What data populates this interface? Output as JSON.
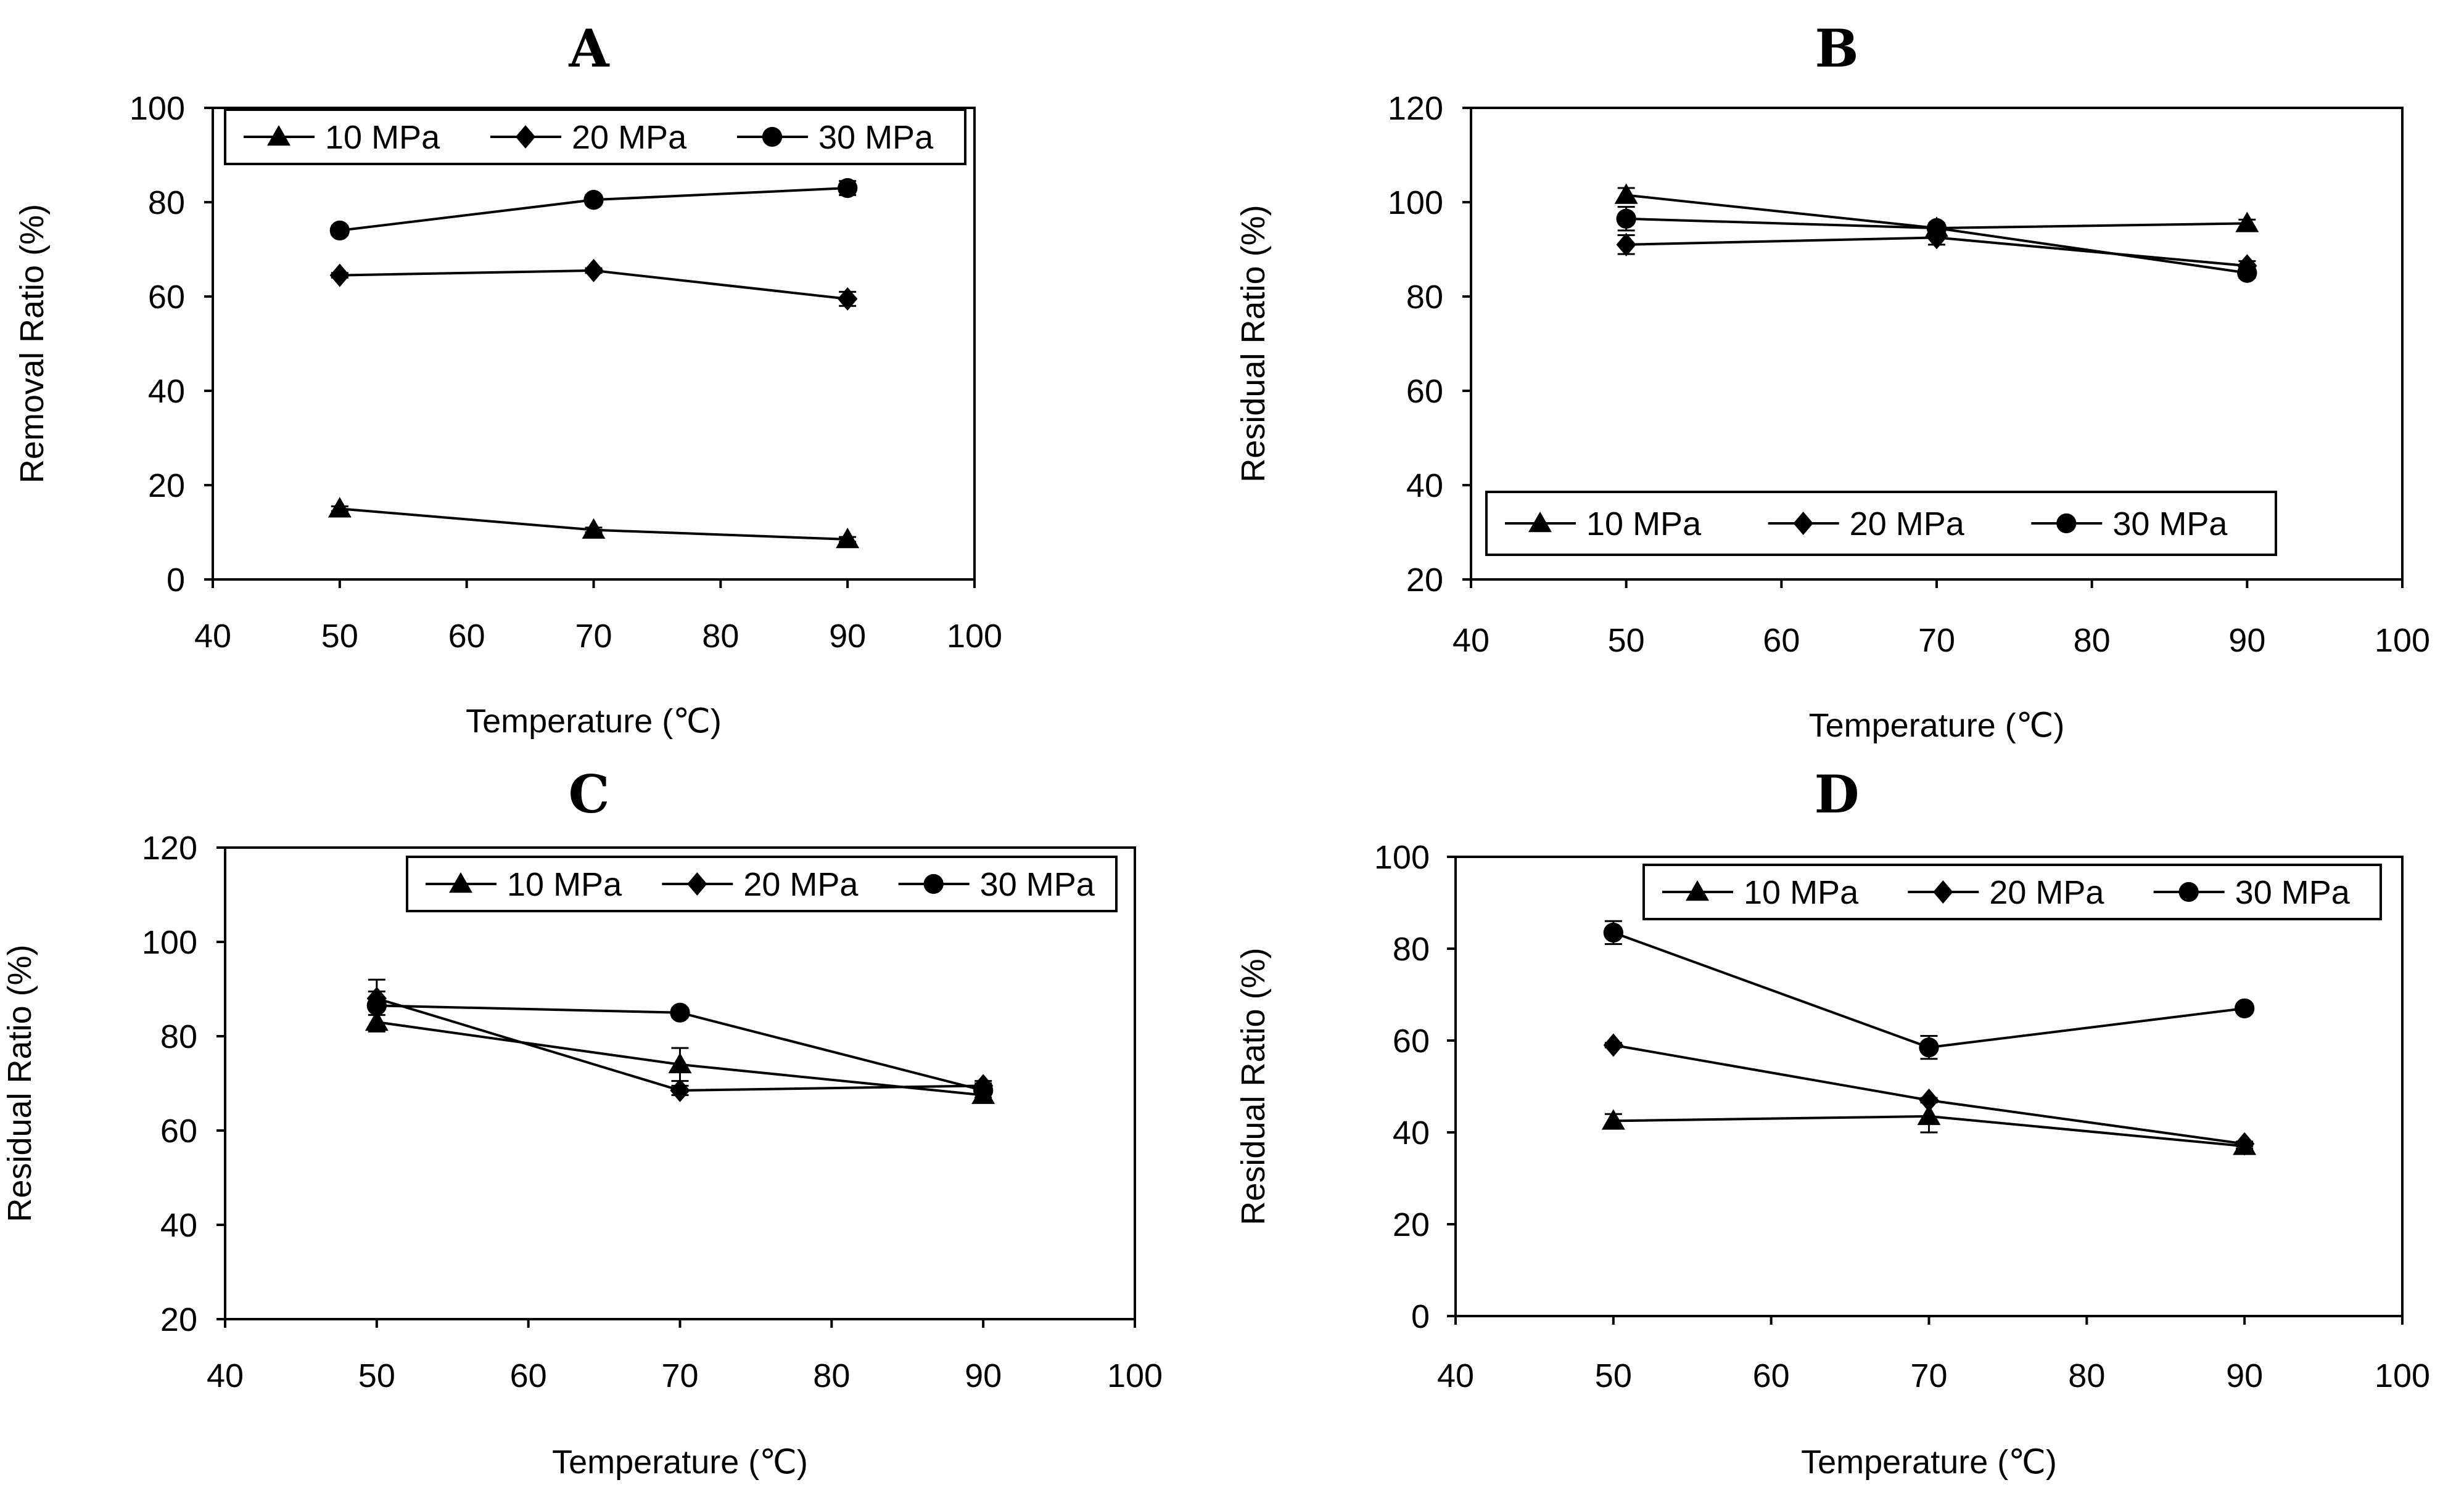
{
  "chart_data": [
    {
      "id": "A",
      "type": "line",
      "title": "A",
      "xlabel": "Temperature (℃)",
      "ylabel": "Removal Ratio (%)",
      "xlim": [
        40,
        100
      ],
      "ylim": [
        0,
        100
      ],
      "xticks": [
        40,
        50,
        60,
        70,
        80,
        90,
        100
      ],
      "yticks": [
        0,
        20,
        40,
        60,
        80,
        100
      ],
      "grid": false,
      "legend_position": "top",
      "series": [
        {
          "name": "10 MPa",
          "marker": "triangle",
          "x": [
            50,
            70,
            90
          ],
          "y": [
            15,
            10.5,
            8.5
          ],
          "err": [
            0.5,
            0.5,
            0.5
          ]
        },
        {
          "name": "20 MPa",
          "marker": "diamond",
          "x": [
            50,
            70,
            90
          ],
          "y": [
            64.5,
            65.5,
            59.5
          ],
          "err": [
            0.5,
            0.5,
            1.5
          ]
        },
        {
          "name": "30 MPa",
          "marker": "circle",
          "x": [
            50,
            70,
            90
          ],
          "y": [
            74,
            80.5,
            83
          ],
          "err": [
            1,
            1,
            1.5
          ]
        }
      ]
    },
    {
      "id": "B",
      "type": "line",
      "title": "B",
      "xlabel": "Temperature (℃)",
      "ylabel": "Residual Ratio (%)",
      "xlim": [
        40,
        100
      ],
      "ylim": [
        20,
        120
      ],
      "xticks": [
        40,
        50,
        60,
        70,
        80,
        90,
        100
      ],
      "yticks": [
        20,
        40,
        60,
        80,
        100,
        120
      ],
      "grid": false,
      "legend_position": "bottom",
      "series": [
        {
          "name": "10 MPa",
          "marker": "triangle",
          "x": [
            50,
            70,
            90
          ],
          "y": [
            101.5,
            94.5,
            95.5
          ],
          "err": [
            1.5,
            0.8,
            0.8
          ]
        },
        {
          "name": "20 MPa",
          "marker": "diamond",
          "x": [
            50,
            70,
            90
          ],
          "y": [
            91,
            92.5,
            86.5
          ],
          "err": [
            2,
            1.5,
            1
          ]
        },
        {
          "name": "30 MPa",
          "marker": "circle",
          "x": [
            50,
            70,
            90
          ],
          "y": [
            96.5,
            94.5,
            85
          ],
          "err": [
            2.5,
            1,
            1
          ]
        }
      ]
    },
    {
      "id": "C",
      "type": "line",
      "title": "C",
      "xlabel": "Temperature (℃)",
      "ylabel": "Residual Ratio (%)",
      "xlim": [
        40,
        100
      ],
      "ylim": [
        20,
        120
      ],
      "xticks": [
        40,
        50,
        60,
        70,
        80,
        90,
        100
      ],
      "yticks": [
        20,
        40,
        60,
        80,
        100,
        120
      ],
      "grid": false,
      "legend_position": "top-right",
      "series": [
        {
          "name": "10 MPa",
          "marker": "triangle",
          "x": [
            50,
            70,
            90
          ],
          "y": [
            83,
            74,
            67.5
          ],
          "err": [
            1.5,
            3.5,
            1
          ]
        },
        {
          "name": "20 MPa",
          "marker": "diamond",
          "x": [
            50,
            70,
            90
          ],
          "y": [
            88,
            68.5,
            69.5
          ],
          "err": [
            1.5,
            1,
            1
          ]
        },
        {
          "name": "30 MPa",
          "marker": "circle",
          "x": [
            50,
            70,
            90
          ],
          "y": [
            86.5,
            85,
            68.5
          ],
          "err": [
            5.5,
            1,
            1.5
          ]
        }
      ]
    },
    {
      "id": "D",
      "type": "line",
      "title": "D",
      "xlabel": "Temperature (℃)",
      "ylabel": "Residual Ratio (%)",
      "xlim": [
        40,
        100
      ],
      "ylim": [
        0,
        100
      ],
      "xticks": [
        40,
        50,
        60,
        70,
        80,
        90,
        100
      ],
      "yticks": [
        0,
        20,
        40,
        60,
        80,
        100
      ],
      "grid": false,
      "legend_position": "top-right",
      "series": [
        {
          "name": "10 MPa",
          "marker": "triangle",
          "x": [
            50,
            70,
            90
          ],
          "y": [
            42.5,
            43.5,
            37
          ],
          "err": [
            1.5,
            3.5,
            0.5
          ]
        },
        {
          "name": "20 MPa",
          "marker": "diamond",
          "x": [
            50,
            70,
            90
          ],
          "y": [
            59,
            47,
            37.5
          ],
          "err": [
            0.5,
            0.5,
            0.5
          ]
        },
        {
          "name": "30 MPa",
          "marker": "circle",
          "x": [
            50,
            70,
            90
          ],
          "y": [
            83.5,
            58.5,
            67
          ],
          "err": [
            2.5,
            2.5,
            1
          ]
        }
      ]
    }
  ]
}
